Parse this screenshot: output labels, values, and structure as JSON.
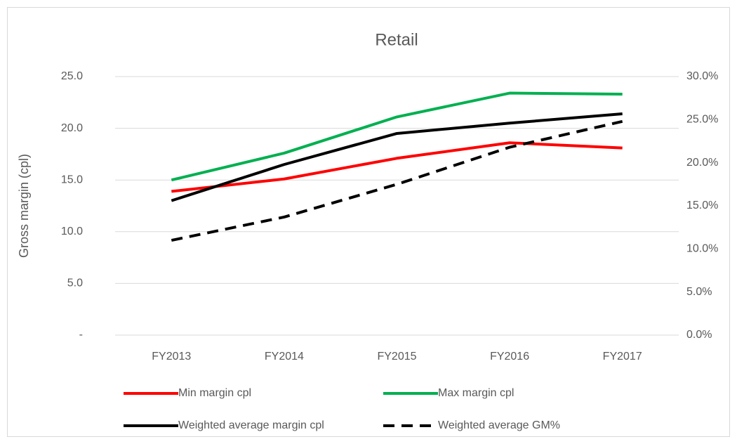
{
  "chart_data": {
    "type": "line",
    "title": "Retail",
    "ylabel": "Gross margin (cpl)",
    "categories": [
      "FY2013",
      "FY2014",
      "FY2015",
      "FY2016",
      "FY2017"
    ],
    "series": [
      {
        "name": "Min margin cpl",
        "color": "#ff0000",
        "values": [
          13.9,
          15.1,
          17.1,
          18.6,
          18.1
        ]
      },
      {
        "name": "Max margin cpl",
        "color": "#00b050",
        "values": [
          15.0,
          17.6,
          21.1,
          23.4,
          23.3
        ]
      },
      {
        "name": "Weighted average margin cpl",
        "color": "#000000",
        "values": [
          13.0,
          16.5,
          19.5,
          20.5,
          21.4
        ]
      },
      {
        "name": "Weighted average GM%",
        "color": "#000000",
        "dashed": true,
        "axis": "y2",
        "values": [
          11.0,
          13.7,
          17.5,
          21.8,
          24.8
        ]
      }
    ],
    "ylim": [
      0,
      25
    ],
    "yticks": [
      {
        "value": 0,
        "label": "-"
      },
      {
        "value": 5,
        "label": "5.0"
      },
      {
        "value": 10,
        "label": "10.0"
      },
      {
        "value": 15,
        "label": "15.0"
      },
      {
        "value": 20,
        "label": "20.0"
      },
      {
        "value": 25,
        "label": "25.0"
      }
    ],
    "y2lim": [
      0,
      30
    ],
    "y2ticks": [
      {
        "value": 0,
        "label": "0.0%"
      },
      {
        "value": 5,
        "label": "5.0%"
      },
      {
        "value": 10,
        "label": "10.0%"
      },
      {
        "value": 15,
        "label": "15.0%"
      },
      {
        "value": 20,
        "label": "20.0%"
      },
      {
        "value": 25,
        "label": "25.0%"
      },
      {
        "value": 30,
        "label": "30.0%"
      }
    ],
    "grid": true
  }
}
